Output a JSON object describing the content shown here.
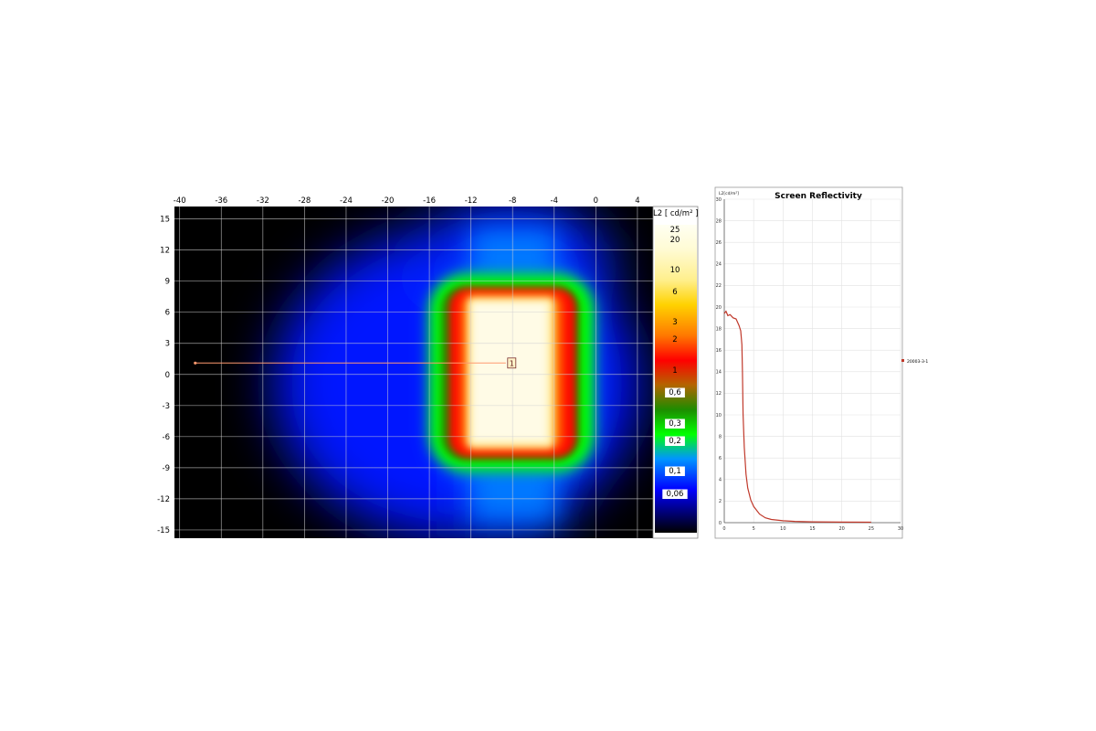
{
  "chart_data": [
    {
      "type": "heatmap",
      "xticks": [
        -40,
        -36,
        -32,
        -28,
        -24,
        -20,
        -16,
        -12,
        -8,
        -4,
        0,
        4
      ],
      "yticks": [
        15,
        12,
        9,
        6,
        3,
        0,
        -3,
        -6,
        -9,
        -12,
        -15
      ],
      "xlim": [
        -40.5,
        5.5
      ],
      "ylim": [
        -15.8,
        16.2
      ],
      "colorbar": {
        "title": "L2 [ cd/m² ]",
        "labels": [
          "25",
          "20",
          "10",
          "6",
          "3",
          "2",
          "1",
          "0,6",
          "0,3",
          "0,2",
          "0,1",
          "0,06"
        ],
        "colors": [
          "#fffff0",
          "#fffbd2",
          "#ffef8c",
          "#ffd200",
          "#ff7800",
          "#ff0000",
          "#b46400",
          "#1e8c00",
          "#00ff00",
          "#0096ff",
          "#0000ff",
          "#000000"
        ]
      },
      "bright_region": {
        "x": [
          -12.5,
          -4.5
        ],
        "y": [
          -7.5,
          8
        ]
      },
      "profile_line": {
        "x1": -38.5,
        "y1": 1.1,
        "x2": -8.3,
        "y2": 1.1,
        "marker_label": "1",
        "color": "#ff9a70"
      }
    },
    {
      "type": "line",
      "title": "Screen Reflectivity",
      "ylabel": "L2[cd/m²]",
      "xlim": [
        0,
        30
      ],
      "ylim": [
        0,
        30
      ],
      "xticks": [
        0,
        5,
        10,
        15,
        20,
        25,
        30
      ],
      "yticks": [
        0,
        2,
        4,
        6,
        8,
        10,
        12,
        14,
        16,
        18,
        20,
        22,
        24,
        26,
        28,
        30
      ],
      "grid": true,
      "legend_position": "right",
      "series": [
        {
          "name": "20003-3-1",
          "color": "#c0392b",
          "x": [
            0,
            0.3,
            0.6,
            1,
            1.5,
            2,
            2.5,
            2.8,
            3,
            3.1,
            3.2,
            3.4,
            3.7,
            4,
            4.5,
            5,
            6,
            7,
            8,
            10,
            12,
            15,
            20,
            25
          ],
          "y": [
            19.4,
            19.6,
            19.2,
            19.3,
            19.0,
            18.9,
            18.3,
            17.8,
            16.5,
            14,
            10,
            7,
            4.5,
            3.2,
            2.1,
            1.5,
            0.8,
            0.45,
            0.3,
            0.18,
            0.12,
            0.08,
            0.05,
            0.04
          ]
        }
      ]
    }
  ]
}
